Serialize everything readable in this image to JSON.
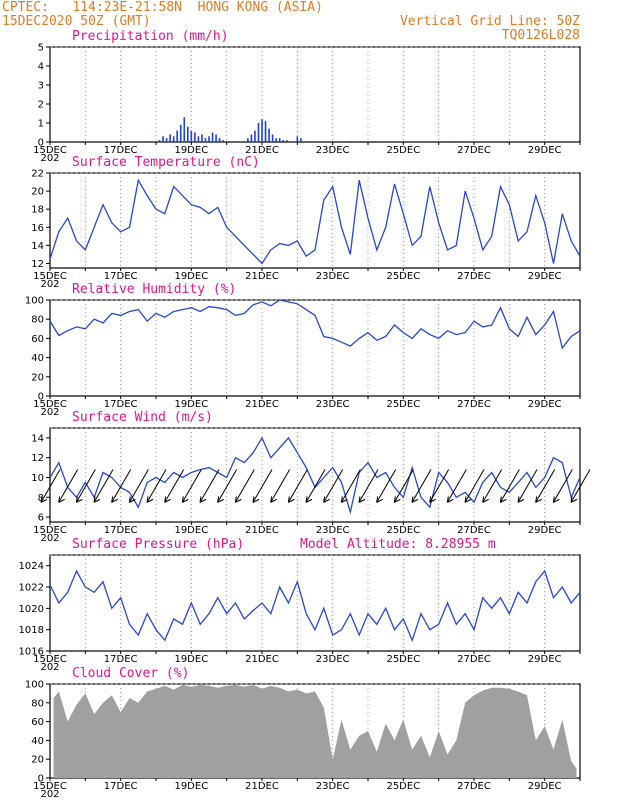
{
  "header": {
    "line1_left": "CPTEC:   114:23E-21:58N  HONG KONG (ASIA)",
    "line2_left": "15DEC2020 50Z (GMT)",
    "line1_right": "Vertical Grid Line: 50Z",
    "line2_right": "TQ0126L028",
    "color": "#e07b28"
  },
  "x_axis": {
    "labels": [
      "15DEC",
      "17DEC",
      "19DEC",
      "21DEC",
      "23DEC",
      "25DEC",
      "27DEC",
      "29DEC"
    ],
    "year_fragment": "202",
    "range_days": [
      0,
      15
    ]
  },
  "chart_data": [
    {
      "id": "precip",
      "type": "bar",
      "title": "Precipitation (mm/h)",
      "ylim": [
        0,
        5
      ],
      "yticks": [
        0,
        1,
        2,
        3,
        4,
        5
      ],
      "color": "#1f3fd8",
      "x": [
        3.1,
        3.2,
        3.3,
        3.4,
        3.5,
        3.6,
        3.7,
        3.8,
        3.9,
        4.0,
        4.1,
        4.2,
        4.3,
        4.4,
        4.5,
        4.6,
        4.7,
        4.8,
        4.9,
        5.6,
        5.7,
        5.8,
        5.9,
        6.0,
        6.1,
        6.2,
        6.3,
        6.4,
        6.5,
        6.6,
        6.7,
        7.0,
        7.1,
        8.5,
        11.2,
        11.3
      ],
      "values": [
        0.1,
        0.3,
        0.2,
        0.4,
        0.3,
        0.6,
        0.9,
        1.3,
        0.8,
        0.6,
        0.5,
        0.3,
        0.4,
        0.2,
        0.3,
        0.5,
        0.4,
        0.2,
        0.1,
        0.2,
        0.4,
        0.6,
        1.0,
        1.2,
        1.1,
        0.7,
        0.4,
        0.2,
        0.2,
        0.1,
        0.1,
        0.3,
        0.2,
        0.05,
        0.05,
        0.05
      ]
    },
    {
      "id": "temp",
      "type": "line",
      "title": "Surface Temperature (nC)",
      "ylim": [
        11.5,
        22
      ],
      "yticks": [
        12,
        14,
        16,
        18,
        20,
        22
      ],
      "color": "#2847d8",
      "x": [
        0,
        0.25,
        0.5,
        0.75,
        1.0,
        1.25,
        1.5,
        1.75,
        2.0,
        2.25,
        2.5,
        2.75,
        3.0,
        3.25,
        3.5,
        3.75,
        4.0,
        4.25,
        4.5,
        4.75,
        5.0,
        5.25,
        5.5,
        5.75,
        6.0,
        6.25,
        6.5,
        6.75,
        7.0,
        7.25,
        7.5,
        7.75,
        8.0,
        8.25,
        8.5,
        8.75,
        9.0,
        9.25,
        9.5,
        9.75,
        10.0,
        10.25,
        10.5,
        10.75,
        11.0,
        11.25,
        11.5,
        11.75,
        12.0,
        12.25,
        12.5,
        12.75,
        13.0,
        13.25,
        13.5,
        13.75,
        14.0,
        14.25,
        14.5,
        14.75,
        15.0
      ],
      "values": [
        12.5,
        15.5,
        17.0,
        14.5,
        13.5,
        16.0,
        18.5,
        16.5,
        15.5,
        16.0,
        21.2,
        19.5,
        18.0,
        17.5,
        20.5,
        19.5,
        18.5,
        18.2,
        17.5,
        18.2,
        16.0,
        15.0,
        14.0,
        13.0,
        12.0,
        13.5,
        14.2,
        14.0,
        14.5,
        12.8,
        13.5,
        19.0,
        20.5,
        16.0,
        13.0,
        21.2,
        17.0,
        13.5,
        16.0,
        20.8,
        17.5,
        14.0,
        15.0,
        20.5,
        16.5,
        13.5,
        14.0,
        20.0,
        17.0,
        13.5,
        15.0,
        20.5,
        18.5,
        14.5,
        15.5,
        19.5,
        16.5,
        12.0,
        17.5,
        14.5,
        12.8
      ]
    },
    {
      "id": "rh",
      "type": "line",
      "title": "Relative Humidity (%)",
      "ylim": [
        0,
        100
      ],
      "yticks": [
        0,
        20,
        40,
        60,
        80,
        100
      ],
      "color": "#2847d8",
      "x": [
        0,
        0.25,
        0.5,
        0.75,
        1.0,
        1.25,
        1.5,
        1.75,
        2.0,
        2.25,
        2.5,
        2.75,
        3.0,
        3.25,
        3.5,
        3.75,
        4.0,
        4.25,
        4.5,
        4.75,
        5.0,
        5.25,
        5.5,
        5.75,
        6.0,
        6.25,
        6.5,
        6.75,
        7.0,
        7.25,
        7.5,
        7.75,
        8.0,
        8.25,
        8.5,
        8.75,
        9.0,
        9.25,
        9.5,
        9.75,
        10.0,
        10.25,
        10.5,
        10.75,
        11.0,
        11.25,
        11.5,
        11.75,
        12.0,
        12.25,
        12.5,
        12.75,
        13.0,
        13.25,
        13.5,
        13.75,
        14.0,
        14.25,
        14.5,
        14.75,
        15.0
      ],
      "values": [
        78,
        63,
        68,
        72,
        70,
        80,
        76,
        86,
        84,
        88,
        90,
        78,
        86,
        82,
        88,
        90,
        92,
        88,
        93,
        92,
        90,
        84,
        86,
        95,
        98,
        94,
        100,
        98,
        96,
        90,
        84,
        62,
        60,
        56,
        52,
        60,
        66,
        58,
        62,
        74,
        66,
        60,
        70,
        64,
        60,
        68,
        64,
        66,
        78,
        72,
        74,
        92,
        70,
        62,
        82,
        64,
        74,
        88,
        50,
        62,
        68
      ]
    },
    {
      "id": "wind",
      "type": "line",
      "title": "Surface Wind (m/s)",
      "ylim": [
        5.5,
        15
      ],
      "yticks": [
        6,
        8,
        10,
        12,
        14
      ],
      "color": "#2847d8",
      "x": [
        0,
        0.25,
        0.5,
        0.75,
        1.0,
        1.25,
        1.5,
        1.75,
        2.0,
        2.25,
        2.5,
        2.75,
        3.0,
        3.25,
        3.5,
        3.75,
        4.0,
        4.25,
        4.5,
        4.75,
        5.0,
        5.25,
        5.5,
        5.75,
        6.0,
        6.25,
        6.5,
        6.75,
        7.0,
        7.25,
        7.5,
        7.75,
        8.0,
        8.25,
        8.5,
        8.75,
        9.0,
        9.25,
        9.5,
        9.75,
        10.0,
        10.25,
        10.5,
        10.75,
        11.0,
        11.25,
        11.5,
        11.75,
        12.0,
        12.25,
        12.5,
        12.75,
        13.0,
        13.25,
        13.5,
        13.75,
        14.0,
        14.25,
        14.5,
        14.75,
        15.0
      ],
      "values": [
        10.0,
        11.5,
        9.0,
        8.0,
        9.5,
        8.0,
        10.5,
        10.0,
        9.0,
        8.5,
        7.0,
        9.5,
        10.0,
        9.5,
        10.5,
        10.0,
        10.5,
        10.8,
        11.0,
        10.5,
        10.0,
        12.0,
        11.5,
        12.5,
        14.0,
        12.0,
        13.0,
        14.0,
        12.5,
        11.0,
        9.0,
        10.0,
        11.0,
        9.5,
        6.5,
        10.5,
        11.5,
        10.0,
        10.5,
        9.0,
        8.0,
        11.0,
        8.0,
        7.0,
        10.5,
        9.5,
        8.0,
        8.5,
        7.5,
        9.5,
        10.5,
        9.0,
        8.5,
        9.5,
        10.5,
        9.0,
        10.0,
        12.0,
        11.5,
        8.0,
        10.0
      ],
      "barbs_direction": "from NE",
      "barb_color": "#000000"
    },
    {
      "id": "pressure",
      "type": "line",
      "title": "Surface Pressure (hPa)",
      "annotation": "Model Altitude: 8.28955 m",
      "ylim": [
        1016,
        1025
      ],
      "yticks": [
        1016,
        1018,
        1020,
        1022,
        1024
      ],
      "color": "#2847d8",
      "x": [
        0,
        0.25,
        0.5,
        0.75,
        1.0,
        1.25,
        1.5,
        1.75,
        2.0,
        2.25,
        2.5,
        2.75,
        3.0,
        3.25,
        3.5,
        3.75,
        4.0,
        4.25,
        4.5,
        4.75,
        5.0,
        5.25,
        5.5,
        5.75,
        6.0,
        6.25,
        6.5,
        6.75,
        7.0,
        7.25,
        7.5,
        7.75,
        8.0,
        8.25,
        8.5,
        8.75,
        9.0,
        9.25,
        9.5,
        9.75,
        10.0,
        10.25,
        10.5,
        10.75,
        11.0,
        11.25,
        11.5,
        11.75,
        12.0,
        12.25,
        12.5,
        12.75,
        13.0,
        13.25,
        13.5,
        13.75,
        14.0,
        14.25,
        14.5,
        14.75,
        15.0
      ],
      "values": [
        1022.2,
        1020.5,
        1021.5,
        1023.5,
        1022.0,
        1021.5,
        1022.5,
        1020.0,
        1021.0,
        1018.5,
        1017.5,
        1019.5,
        1018.0,
        1017.0,
        1019.0,
        1018.5,
        1020.5,
        1018.5,
        1019.5,
        1021.0,
        1019.5,
        1020.5,
        1019.0,
        1019.8,
        1020.5,
        1019.5,
        1022.0,
        1020.5,
        1022.5,
        1019.5,
        1018.0,
        1020.0,
        1017.5,
        1018.0,
        1019.5,
        1017.5,
        1019.5,
        1018.5,
        1020.0,
        1018.0,
        1019.0,
        1017.0,
        1019.5,
        1018.0,
        1018.5,
        1020.5,
        1018.5,
        1019.5,
        1018.0,
        1021.0,
        1020.0,
        1021.0,
        1019.5,
        1021.5,
        1020.5,
        1022.5,
        1023.5,
        1021.0,
        1022.0,
        1020.5,
        1021.5
      ]
    },
    {
      "id": "cloud",
      "type": "area",
      "title": "Cloud Cover (%)",
      "ylim": [
        0,
        100
      ],
      "yticks": [
        0,
        20,
        40,
        60,
        80,
        100
      ],
      "color": "#a0a0a0",
      "x": [
        0.1,
        0.25,
        0.5,
        0.75,
        1.0,
        1.25,
        1.5,
        1.75,
        2.0,
        2.25,
        2.5,
        2.75,
        3.0,
        3.25,
        3.5,
        3.75,
        4.0,
        4.25,
        4.5,
        4.75,
        5.0,
        5.25,
        5.5,
        5.75,
        6.0,
        6.25,
        6.5,
        6.75,
        7.0,
        7.25,
        7.5,
        7.75,
        8.0,
        8.25,
        8.5,
        8.75,
        9.0,
        9.25,
        9.5,
        9.75,
        10.0,
        10.25,
        10.5,
        10.75,
        11.0,
        11.25,
        11.5,
        11.75,
        12.0,
        12.25,
        12.5,
        12.75,
        13.0,
        13.25,
        13.5,
        13.75,
        14.0,
        14.25,
        14.5,
        14.75,
        14.9
      ],
      "values": [
        85,
        92,
        60,
        78,
        90,
        68,
        80,
        88,
        70,
        85,
        80,
        92,
        95,
        98,
        94,
        99,
        97,
        99,
        98,
        96,
        98,
        99,
        97,
        99,
        95,
        98,
        96,
        92,
        94,
        90,
        92,
        75,
        20,
        62,
        30,
        45,
        50,
        28,
        58,
        40,
        62,
        30,
        45,
        22,
        50,
        25,
        40,
        80,
        88,
        93,
        96,
        96,
        95,
        92,
        88,
        40,
        55,
        30,
        62,
        18,
        10
      ]
    }
  ]
}
